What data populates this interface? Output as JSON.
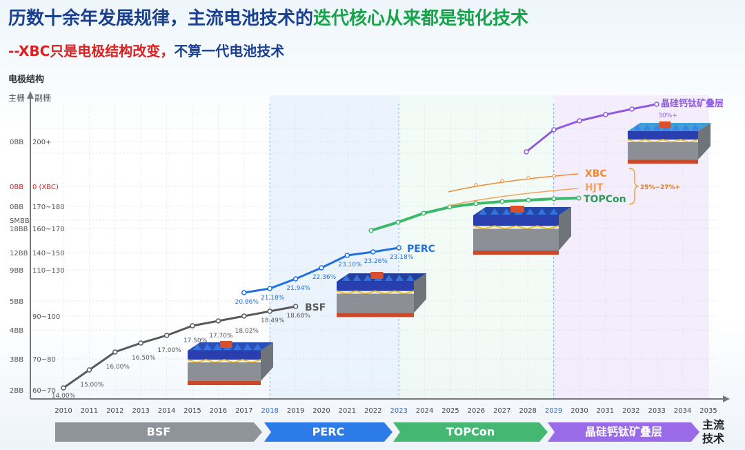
{
  "header": {
    "title_part1": "历数十余年发展规律，主流电池技术的",
    "title_part2": "迭代核心从来都是钝化技术",
    "subtitle_part1": "--XBC只是电极结构改变，",
    "subtitle_part2": "不算一代电池技术"
  },
  "chart_data": {
    "type": "line",
    "y_axis_title": "电极结构",
    "y_columns": [
      "主栅",
      "副栅"
    ],
    "y_rows": [
      {
        "main": "0BB",
        "sub": "200+",
        "color": "#555555"
      },
      {
        "main": "0BB",
        "sub": "0 (XBC)",
        "color": "#e02020"
      },
      {
        "main": "0BB",
        "sub": "170~180",
        "color": "#555555"
      },
      {
        "main": "SMBB",
        "sub": "",
        "color": "#555555"
      },
      {
        "main": "18BB",
        "sub": "160~170",
        "color": "#555555"
      },
      {
        "main": "12BB",
        "sub": "140~150",
        "color": "#555555"
      },
      {
        "main": "9BB",
        "sub": "110~130",
        "color": "#555555"
      },
      {
        "main": "5BB",
        "sub": "",
        "color": "#555555"
      },
      {
        "main": "",
        "sub": "90~100",
        "color": "#555555"
      },
      {
        "main": "4BB",
        "sub": "",
        "color": "#555555"
      },
      {
        "main": "3BB",
        "sub": "70~80",
        "color": "#555555"
      },
      {
        "main": "2BB",
        "sub": "60~70",
        "color": "#555555"
      }
    ],
    "x_years": [
      "2010",
      "2011",
      "2012",
      "2013",
      "2014",
      "2015",
      "2016",
      "2017",
      "2018",
      "2019",
      "2020",
      "2021",
      "2022",
      "2023",
      "2024",
      "2025",
      "2026",
      "2027",
      "2028",
      "2029",
      "2030",
      "2031",
      "2032",
      "2033",
      "2034",
      "2035"
    ],
    "highlight_years": [
      "2018",
      "2023",
      "2029"
    ],
    "series": [
      {
        "name": "BSF",
        "color": "#595959",
        "points": [
          [
            "2010",
            "14.00%"
          ],
          [
            "2011",
            "15.00%"
          ],
          [
            "2012",
            "16.00%"
          ],
          [
            "2013",
            "16.50%"
          ],
          [
            "2014",
            "17.00%"
          ],
          [
            "2015",
            "17.50%"
          ],
          [
            "2016",
            "17.70%"
          ],
          [
            "2017",
            "18.02%"
          ],
          [
            "2018",
            "18.49%"
          ],
          [
            "2019",
            "18.68%"
          ]
        ]
      },
      {
        "name": "PERC",
        "color": "#1f6fe0",
        "points": [
          [
            "2017",
            "20.86%"
          ],
          [
            "2018",
            "21.18%"
          ],
          [
            "2019",
            "21.94%"
          ],
          [
            "2020",
            "22.36%"
          ],
          [
            "2021",
            "23.10%"
          ],
          [
            "2022",
            "23.26%"
          ],
          [
            "2023",
            "23.18%"
          ]
        ]
      },
      {
        "name": "TOPCon",
        "color": "#3cb86a",
        "points": []
      },
      {
        "name": "HJT",
        "color": "#f5a25a",
        "points": []
      },
      {
        "name": "XBC",
        "color": "#f08a30",
        "points": []
      },
      {
        "name": "晶硅钙钛矿叠层",
        "color": "#8f5be0",
        "points": [
          [
            "2033",
            "30%+"
          ]
        ]
      }
    ],
    "annotations": {
      "hjt_xbc_efficiency": "25%~27%+"
    },
    "phases": [
      {
        "label": "BSF",
        "color": "#8e9499"
      },
      {
        "label": "PERC",
        "color": "#2d7be8"
      },
      {
        "label": "TOPCon",
        "color": "#44b873"
      },
      {
        "label": "晶硅钙钛矿叠层",
        "color": "#9a6be8"
      }
    ],
    "x_end_label": "主流技术"
  }
}
